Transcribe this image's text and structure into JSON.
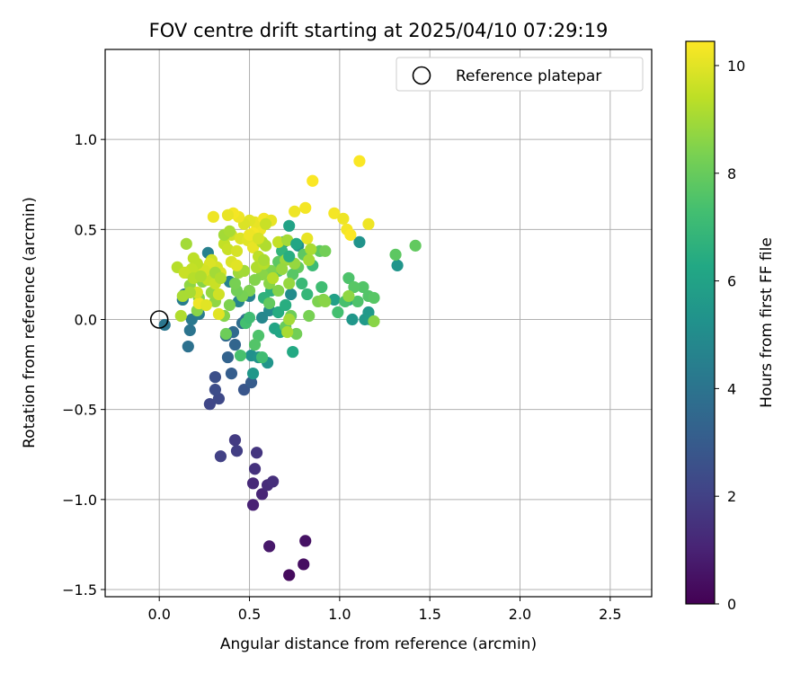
{
  "chart_data": {
    "type": "scatter",
    "title": "FOV centre drift starting at 2025/04/10 07:29:19",
    "xlabel": "Angular distance from reference (arcmin)",
    "ylabel": "Rotation from reference (arcmin)",
    "xlim": [
      -0.3,
      2.73
    ],
    "ylim": [
      -1.54,
      1.5
    ],
    "x_ticks": [
      0.0,
      0.5,
      1.0,
      1.5,
      2.0,
      2.5
    ],
    "x_tick_labels": [
      "0.0",
      "0.5",
      "1.0",
      "1.5",
      "2.0",
      "2.5"
    ],
    "y_ticks": [
      -1.5,
      -1.0,
      -0.5,
      0.0,
      0.5,
      1.0
    ],
    "y_tick_labels": [
      "−1.5",
      "−1.0",
      "−0.5",
      "0.0",
      "0.5",
      "1.0"
    ],
    "grid": true,
    "colormap": "viridis",
    "colorbar": {
      "label": "Hours from first FF file",
      "min": 0,
      "max": 10.45,
      "ticks": [
        0,
        2,
        4,
        6,
        8,
        10
      ],
      "tick_labels": [
        "0",
        "2",
        "4",
        "6",
        "8",
        "10"
      ]
    },
    "legend": {
      "position": "top-right",
      "entries": [
        "Reference platepar"
      ]
    },
    "reference_point": {
      "x": 0.0,
      "y": 0.0
    },
    "points": [
      [
        0.72,
        -1.42,
        0.3
      ],
      [
        0.8,
        -1.36,
        0.4
      ],
      [
        0.81,
        -1.23,
        0.5
      ],
      [
        0.61,
        -1.26,
        0.7
      ],
      [
        0.52,
        -1.03,
        1.0
      ],
      [
        0.57,
        -0.97,
        1.1
      ],
      [
        0.52,
        -0.91,
        1.2
      ],
      [
        0.6,
        -0.92,
        1.3
      ],
      [
        0.63,
        -0.9,
        1.4
      ],
      [
        0.53,
        -0.83,
        1.5
      ],
      [
        0.54,
        -0.74,
        1.6
      ],
      [
        0.42,
        -0.67,
        1.8
      ],
      [
        0.43,
        -0.73,
        1.9
      ],
      [
        0.34,
        -0.76,
        2.0
      ],
      [
        0.28,
        -0.47,
        2.2
      ],
      [
        0.33,
        -0.44,
        2.3
      ],
      [
        0.31,
        -0.39,
        2.4
      ],
      [
        0.31,
        -0.32,
        2.5
      ],
      [
        0.47,
        -0.39,
        2.8
      ],
      [
        0.51,
        -0.35,
        3.0
      ],
      [
        0.4,
        -0.3,
        3.1
      ],
      [
        0.38,
        -0.21,
        3.3
      ],
      [
        0.42,
        -0.14,
        3.4
      ],
      [
        0.37,
        -0.09,
        3.5
      ],
      [
        0.41,
        -0.07,
        3.6
      ],
      [
        0.46,
        -0.02,
        3.7
      ],
      [
        0.48,
        0.0,
        3.8
      ],
      [
        0.16,
        -0.15,
        3.9
      ],
      [
        0.17,
        -0.06,
        4.0
      ],
      [
        0.03,
        -0.03,
        4.1
      ],
      [
        0.18,
        0.0,
        4.2
      ],
      [
        0.22,
        0.03,
        4.3
      ],
      [
        0.13,
        0.11,
        4.4
      ],
      [
        0.14,
        0.14,
        4.2
      ],
      [
        0.27,
        0.37,
        4.5
      ],
      [
        0.39,
        0.21,
        4.6
      ],
      [
        0.44,
        0.1,
        4.7
      ],
      [
        0.5,
        0.13,
        4.6
      ],
      [
        0.57,
        0.01,
        4.8
      ],
      [
        0.61,
        0.05,
        4.9
      ],
      [
        0.73,
        0.14,
        5.0
      ],
      [
        0.69,
        0.43,
        5.0
      ],
      [
        0.77,
        0.41,
        5.1
      ],
      [
        0.51,
        -0.2,
        5.2
      ],
      [
        0.55,
        -0.21,
        5.3
      ],
      [
        0.6,
        -0.24,
        5.4
      ],
      [
        0.52,
        -0.3,
        5.5
      ],
      [
        1.11,
        0.43,
        5.3
      ],
      [
        1.32,
        0.3,
        5.4
      ],
      [
        1.07,
        0.0,
        5.5
      ],
      [
        1.14,
        0.0,
        5.6
      ],
      [
        1.16,
        0.04,
        5.6
      ],
      [
        1.17,
        0.0,
        5.7
      ],
      [
        1.05,
        0.11,
        5.8
      ],
      [
        0.97,
        0.11,
        5.9
      ],
      [
        0.72,
        0.52,
        6.0
      ],
      [
        0.64,
        -0.05,
        6.1
      ],
      [
        0.67,
        -0.07,
        6.2
      ],
      [
        0.74,
        -0.18,
        6.3
      ],
      [
        0.66,
        0.04,
        6.4
      ],
      [
        0.7,
        0.08,
        6.5
      ],
      [
        0.62,
        0.16,
        6.6
      ],
      [
        0.58,
        0.12,
        6.7
      ],
      [
        0.68,
        0.38,
        6.8
      ],
      [
        0.82,
        0.14,
        6.9
      ],
      [
        0.79,
        0.2,
        7.0
      ],
      [
        0.85,
        0.3,
        7.1
      ],
      [
        0.9,
        0.18,
        7.2
      ],
      [
        0.99,
        0.04,
        7.3
      ],
      [
        1.03,
        0.1,
        7.4
      ],
      [
        1.1,
        0.1,
        7.5
      ],
      [
        1.13,
        0.18,
        7.6
      ],
      [
        1.16,
        0.13,
        7.6
      ],
      [
        1.19,
        0.12,
        7.7
      ],
      [
        1.05,
        0.23,
        7.5
      ],
      [
        1.08,
        0.18,
        7.7
      ],
      [
        1.31,
        0.36,
        7.8
      ],
      [
        1.42,
        0.41,
        7.9
      ],
      [
        0.89,
        0.38,
        7.8
      ],
      [
        0.77,
        0.29,
        7.9
      ],
      [
        0.8,
        0.36,
        7.8
      ],
      [
        0.74,
        0.25,
        7.7
      ],
      [
        0.66,
        0.27,
        7.6
      ],
      [
        0.66,
        0.32,
        7.8
      ],
      [
        0.48,
        -0.02,
        7.3
      ],
      [
        0.5,
        0.01,
        7.2
      ],
      [
        0.45,
        -0.2,
        7.4
      ],
      [
        0.55,
        -0.09,
        7.5
      ],
      [
        0.53,
        -0.14,
        7.6
      ],
      [
        0.57,
        -0.21,
        7.2
      ],
      [
        0.61,
        0.09,
        7.9
      ],
      [
        0.7,
        -0.04,
        8.0
      ],
      [
        0.73,
        0.02,
        8.1
      ],
      [
        0.76,
        -0.08,
        8.2
      ],
      [
        0.83,
        0.02,
        8.3
      ],
      [
        0.88,
        0.1,
        8.4
      ],
      [
        0.91,
        0.11,
        8.5
      ],
      [
        1.19,
        -0.01,
        8.6
      ],
      [
        1.05,
        0.13,
        8.7
      ],
      [
        0.72,
        0.2,
        8.8
      ],
      [
        0.66,
        0.16,
        8.5
      ],
      [
        0.61,
        0.2,
        8.6
      ],
      [
        0.62,
        0.27,
        8.4
      ],
      [
        0.56,
        0.31,
        8.7
      ],
      [
        0.57,
        0.25,
        8.6
      ],
      [
        0.53,
        0.22,
        8.5
      ],
      [
        0.5,
        0.16,
        8.4
      ],
      [
        0.46,
        0.13,
        8.3
      ],
      [
        0.43,
        0.16,
        8.2
      ],
      [
        0.42,
        0.2,
        8.3
      ],
      [
        0.39,
        0.08,
        8.4
      ],
      [
        0.36,
        0.02,
        8.5
      ],
      [
        0.37,
        -0.08,
        8.1
      ],
      [
        0.44,
        0.26,
        8.9
      ],
      [
        0.47,
        0.27,
        9.0
      ],
      [
        0.31,
        0.1,
        8.7
      ],
      [
        0.29,
        0.15,
        8.8
      ],
      [
        0.24,
        0.21,
        8.6
      ],
      [
        0.22,
        0.12,
        8.5
      ],
      [
        0.21,
        0.05,
        8.6
      ],
      [
        0.17,
        0.19,
        8.7
      ],
      [
        0.15,
        0.26,
        8.9
      ],
      [
        0.15,
        0.42,
        9.0
      ],
      [
        0.13,
        0.13,
        9.1
      ],
      [
        0.12,
        0.02,
        9.2
      ],
      [
        0.1,
        0.29,
        9.3
      ],
      [
        0.19,
        0.34,
        9.4
      ],
      [
        0.22,
        0.29,
        9.5
      ],
      [
        0.26,
        0.28,
        9.6
      ],
      [
        0.29,
        0.33,
        9.7
      ],
      [
        0.32,
        0.29,
        9.8
      ],
      [
        0.34,
        0.26,
        9.9
      ],
      [
        0.36,
        0.42,
        9.5
      ],
      [
        0.38,
        0.39,
        9.6
      ],
      [
        0.4,
        0.47,
        9.7
      ],
      [
        0.43,
        0.38,
        9.8
      ],
      [
        0.45,
        0.45,
        9.9
      ],
      [
        0.49,
        0.44,
        10.0
      ],
      [
        0.52,
        0.4,
        10.1
      ],
      [
        0.55,
        0.35,
        9.4
      ],
      [
        0.57,
        0.43,
        9.3
      ],
      [
        0.59,
        0.41,
        9.2
      ],
      [
        0.56,
        0.5,
        10.2
      ],
      [
        0.53,
        0.54,
        10.1
      ],
      [
        0.5,
        0.55,
        10.0
      ],
      [
        0.47,
        0.53,
        9.9
      ],
      [
        0.44,
        0.57,
        10.2
      ],
      [
        0.41,
        0.59,
        10.3
      ],
      [
        0.38,
        0.58,
        10.1
      ],
      [
        0.3,
        0.57,
        10.2
      ],
      [
        0.58,
        0.56,
        10.3
      ],
      [
        0.62,
        0.55,
        10.1
      ],
      [
        0.59,
        0.53,
        9.6
      ],
      [
        0.36,
        0.47,
        9.0
      ],
      [
        0.39,
        0.49,
        9.1
      ],
      [
        0.33,
        0.03,
        10.0
      ],
      [
        0.22,
        0.09,
        10.2
      ],
      [
        0.26,
        0.08,
        10.0
      ],
      [
        0.21,
        0.15,
        9.8
      ],
      [
        0.27,
        0.22,
        9.5
      ],
      [
        0.31,
        0.2,
        9.6
      ],
      [
        0.33,
        0.14,
        9.7
      ],
      [
        0.28,
        0.31,
        9.9
      ],
      [
        0.25,
        0.27,
        9.8
      ],
      [
        0.21,
        0.31,
        9.4
      ],
      [
        0.18,
        0.28,
        9.5
      ],
      [
        0.14,
        0.26,
        9.6
      ],
      [
        0.19,
        0.23,
        9.3
      ],
      [
        0.23,
        0.24,
        9.2
      ],
      [
        0.17,
        0.15,
        9.1
      ],
      [
        0.31,
        0.26,
        9.0
      ],
      [
        0.34,
        0.23,
        9.2
      ],
      [
        0.82,
        0.45,
        10.1
      ],
      [
        0.75,
        0.6,
        10.2
      ],
      [
        0.81,
        0.62,
        10.3
      ],
      [
        0.85,
        0.77,
        10.4
      ],
      [
        0.97,
        0.59,
        10.3
      ],
      [
        1.02,
        0.56,
        10.2
      ],
      [
        1.04,
        0.5,
        10.3
      ],
      [
        1.06,
        0.47,
        10.4
      ],
      [
        1.16,
        0.53,
        10.2
      ],
      [
        1.11,
        0.88,
        10.4
      ],
      [
        0.4,
        0.32,
        9.9
      ],
      [
        0.43,
        0.3,
        10.0
      ],
      [
        0.52,
        0.48,
        10.3
      ],
      [
        0.5,
        0.47,
        10.2
      ],
      [
        0.55,
        0.45,
        9.8
      ],
      [
        0.54,
        0.29,
        9.2
      ],
      [
        0.58,
        0.31,
        9.3
      ],
      [
        0.58,
        0.33,
        9.1
      ],
      [
        0.63,
        0.23,
        9.3
      ],
      [
        0.66,
        0.43,
        9.5
      ],
      [
        0.71,
        0.44,
        9.0
      ],
      [
        0.7,
        0.33,
        8.9
      ],
      [
        0.68,
        0.28,
        8.8
      ],
      [
        0.75,
        0.31,
        8.8
      ],
      [
        0.83,
        0.33,
        9.0
      ],
      [
        0.84,
        0.39,
        9.1
      ],
      [
        0.92,
        0.38,
        8.2
      ],
      [
        0.92,
        0.1,
        8.6
      ],
      [
        0.72,
        0.0,
        9.0
      ],
      [
        0.71,
        -0.07,
        9.1
      ],
      [
        0.76,
        0.42,
        6.2
      ],
      [
        0.72,
        0.35,
        6.5
      ]
    ]
  }
}
